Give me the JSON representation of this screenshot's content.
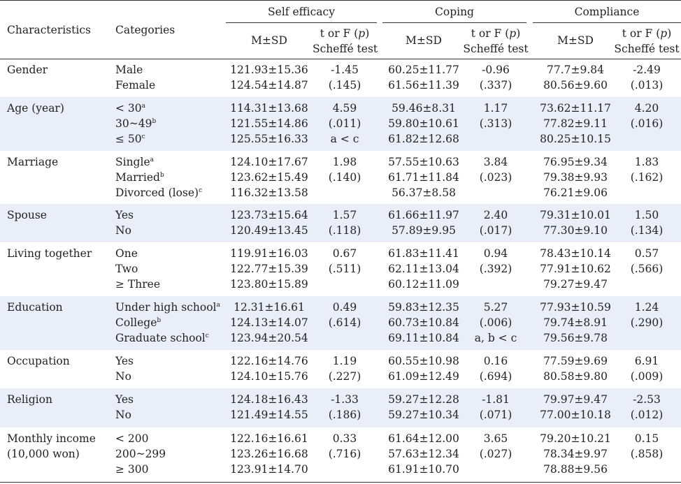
{
  "header": {
    "characteristics": "Characteristics",
    "categories": "Categories",
    "groups": [
      "Self  efficacy",
      "Coping",
      "Compliance"
    ],
    "ms": "M±SD",
    "stat_line1": "t or F (",
    "stat_p": "p",
    "stat_line1_end": ")",
    "stat_line2": "Scheffé test"
  },
  "rows": [
    {
      "name": [
        "Gender"
      ],
      "cats": [
        [
          "Male",
          ""
        ],
        [
          "Female",
          ""
        ]
      ],
      "se": [
        "121.93±15.36",
        "124.54±14.87"
      ],
      "se_t": [
        "-1.45",
        "(.145)"
      ],
      "co": [
        "60.25±11.77",
        "61.56±11.39"
      ],
      "co_t": [
        "-0.96",
        "(.337)"
      ],
      "cp": [
        "77.7±9.84",
        "80.56±9.60"
      ],
      "cp_t": [
        "-2.49",
        "(.013)"
      ]
    },
    {
      "name": [
        "Age (year)"
      ],
      "cats": [
        [
          "< 30",
          "a"
        ],
        [
          "30~49",
          "b"
        ],
        [
          "≤ 50",
          "c"
        ]
      ],
      "se": [
        "114.31±13.68",
        "121.55±14.86",
        "125.55±16.33"
      ],
      "se_t": [
        "4.59",
        "(.011)",
        "a < c"
      ],
      "co": [
        "59.46±8.31",
        "59.80±10.61",
        "61.82±12.68"
      ],
      "co_t": [
        "1.17",
        "(.313)"
      ],
      "cp": [
        "73.62±11.17",
        "77.82±9.11",
        "80.25±10.15"
      ],
      "cp_t": [
        "4.20",
        "(.016)"
      ]
    },
    {
      "name": [
        "Marriage"
      ],
      "cats": [
        [
          "Single",
          "a"
        ],
        [
          "Married",
          "b"
        ],
        [
          "Divorced (lose)",
          "c"
        ]
      ],
      "se": [
        "124.10±17.67",
        "123.62±15.49",
        "116.32±13.58"
      ],
      "se_t": [
        "1.98",
        "(.140)"
      ],
      "co": [
        "57.55±10.63",
        "61.71±11.84",
        "56.37±8.58"
      ],
      "co_t": [
        "3.84",
        "(.023)"
      ],
      "cp": [
        "76.95±9.34",
        "79.38±9.93",
        "76.21±9.06"
      ],
      "cp_t": [
        "1.83",
        "(.162)"
      ]
    },
    {
      "name": [
        "Spouse"
      ],
      "cats": [
        [
          "Yes",
          ""
        ],
        [
          "No",
          ""
        ]
      ],
      "se": [
        "123.73±15.64",
        "120.49±13.45"
      ],
      "se_t": [
        "1.57",
        "(.118)"
      ],
      "co": [
        "61.66±11.97",
        "57.89±9.95"
      ],
      "co_t": [
        "2.40",
        "(.017)"
      ],
      "cp": [
        "79.31±10.01",
        "77.30±9.10"
      ],
      "cp_t": [
        "1.50",
        "(.134)"
      ]
    },
    {
      "name": [
        "Living together"
      ],
      "cats": [
        [
          "One",
          ""
        ],
        [
          "Two",
          ""
        ],
        [
          "≥ Three",
          ""
        ]
      ],
      "se": [
        "119.91±16.03",
        "122.77±15.39",
        "123.80±15.89"
      ],
      "se_t": [
        "0.67",
        "(.511)"
      ],
      "co": [
        "61.83±11.41",
        "62.11±13.04",
        "60.12±11.09"
      ],
      "co_t": [
        "0.94",
        "(.392)"
      ],
      "cp": [
        "78.43±10.14",
        "77.91±10.62",
        "79.27±9.47"
      ],
      "cp_t": [
        "0.57",
        "(.566)"
      ]
    },
    {
      "name": [
        "Education"
      ],
      "cats": [
        [
          "Under high school",
          "a"
        ],
        [
          "College",
          "b"
        ],
        [
          "Graduate school",
          "c"
        ]
      ],
      "se": [
        "12.31±16.61",
        "124.13±14.07",
        "123.94±20.54"
      ],
      "se_t": [
        "0.49",
        "(.614)"
      ],
      "co": [
        "59.83±12.35",
        "60.73±10.84",
        "69.11±10.84"
      ],
      "co_t": [
        "5.27",
        "(.006)",
        "a,  b < c"
      ],
      "cp": [
        "77.93±10.59",
        "79.74±8.91",
        "79.56±9.78"
      ],
      "cp_t": [
        "1.24",
        "(.290)"
      ]
    },
    {
      "name": [
        "Occupation"
      ],
      "cats": [
        [
          "Yes",
          ""
        ],
        [
          "No",
          ""
        ]
      ],
      "se": [
        "122.16±14.76",
        "124.10±15.76"
      ],
      "se_t": [
        "1.19",
        "(.227)"
      ],
      "co": [
        "60.55±10.98",
        "61.09±12.49"
      ],
      "co_t": [
        "0.16",
        "(.694)"
      ],
      "cp": [
        "77.59±9.69",
        "80.58±9.80"
      ],
      "cp_t": [
        "6.91",
        "(.009)"
      ]
    },
    {
      "name": [
        "Religion"
      ],
      "cats": [
        [
          "Yes",
          ""
        ],
        [
          "No",
          ""
        ]
      ],
      "se": [
        "124.18±16.43",
        "121.49±14.55"
      ],
      "se_t": [
        "-1.33",
        "(.186)"
      ],
      "co": [
        "59.27±12.28",
        "59.27±10.34"
      ],
      "co_t": [
        "-1.81",
        "(.071)"
      ],
      "cp": [
        "79.97±9.47",
        "77.00±10.18"
      ],
      "cp_t": [
        "-2.53",
        "(.012)"
      ]
    },
    {
      "name": [
        "Monthly income",
        "  (10,000 won)"
      ],
      "cats": [
        [
          "< 200",
          ""
        ],
        [
          "200~299",
          ""
        ],
        [
          "≥ 300",
          ""
        ]
      ],
      "se": [
        "122.16±16.61",
        "123.26±16.68",
        "123.91±14.70"
      ],
      "se_t": [
        "0.33",
        "(.716)"
      ],
      "co": [
        "61.64±12.00",
        "57.63±12.34",
        "61.91±10.70"
      ],
      "co_t": [
        "3.65",
        "(.027)"
      ],
      "cp": [
        "79.20±10.21",
        "78.34±9.97",
        "78.88±9.56"
      ],
      "cp_t": [
        "0.15",
        "(.858)"
      ]
    }
  ]
}
